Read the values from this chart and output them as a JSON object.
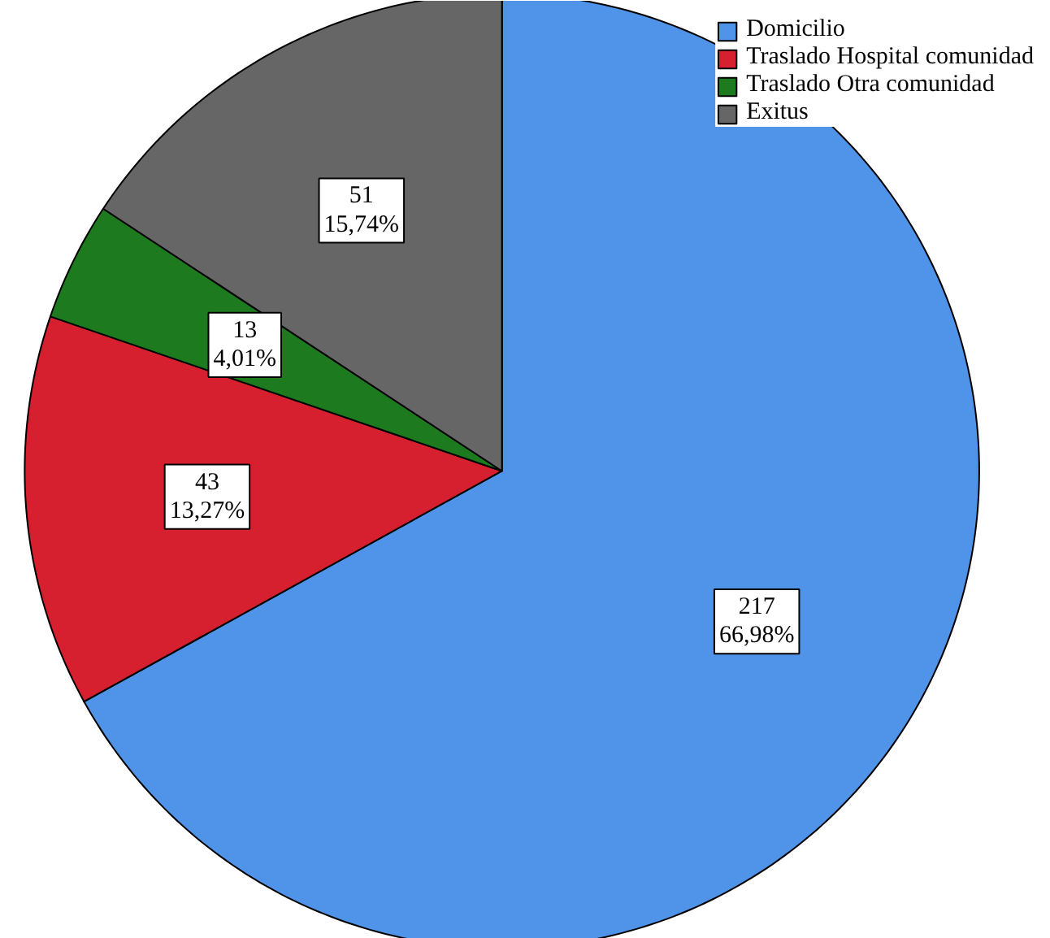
{
  "chart_data": {
    "type": "pie",
    "categories": [
      "Domicilio",
      "Traslado Hospital comunidad",
      "Traslado Otra comunidad",
      "Exitus"
    ],
    "values": [
      217,
      43,
      13,
      51
    ],
    "colors": [
      "#4f94e8",
      "#d7202f",
      "#1e7a1e",
      "#666666"
    ],
    "value_labels": [
      "217\n66,98%",
      "43\n13,27%",
      "13\n4,01%",
      "51\n15,74%"
    ],
    "legend": "top right"
  }
}
